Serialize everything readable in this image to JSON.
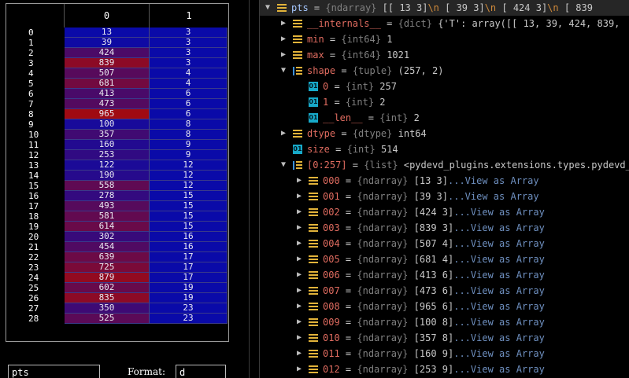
{
  "array_viewer": {
    "column_headers": [
      "0",
      "1"
    ],
    "rows": [
      {
        "index": "0",
        "c0": "13",
        "c1": "3",
        "heat": 0.0
      },
      {
        "index": "1",
        "c0": "39",
        "c1": "3",
        "heat": 0.03
      },
      {
        "index": "2",
        "c0": "424",
        "c1": "3",
        "heat": 0.41
      },
      {
        "index": "3",
        "c0": "839",
        "c1": "3",
        "heat": 0.82
      },
      {
        "index": "4",
        "c0": "507",
        "c1": "4",
        "heat": 0.49
      },
      {
        "index": "5",
        "c0": "681",
        "c1": "4",
        "heat": 0.66
      },
      {
        "index": "6",
        "c0": "413",
        "c1": "6",
        "heat": 0.4
      },
      {
        "index": "7",
        "c0": "473",
        "c1": "6",
        "heat": 0.46
      },
      {
        "index": "8",
        "c0": "965",
        "c1": "6",
        "heat": 0.95
      },
      {
        "index": "9",
        "c0": "100",
        "c1": "8",
        "heat": 0.09
      },
      {
        "index": "10",
        "c0": "357",
        "c1": "8",
        "heat": 0.34
      },
      {
        "index": "11",
        "c0": "160",
        "c1": "9",
        "heat": 0.15
      },
      {
        "index": "12",
        "c0": "253",
        "c1": "9",
        "heat": 0.24
      },
      {
        "index": "13",
        "c0": "122",
        "c1": "12",
        "heat": 0.11
      },
      {
        "index": "14",
        "c0": "190",
        "c1": "12",
        "heat": 0.18
      },
      {
        "index": "15",
        "c0": "558",
        "c1": "12",
        "heat": 0.54
      },
      {
        "index": "16",
        "c0": "278",
        "c1": "15",
        "heat": 0.26
      },
      {
        "index": "17",
        "c0": "493",
        "c1": "15",
        "heat": 0.48
      },
      {
        "index": "18",
        "c0": "581",
        "c1": "15",
        "heat": 0.56
      },
      {
        "index": "19",
        "c0": "614",
        "c1": "15",
        "heat": 0.6
      },
      {
        "index": "20",
        "c0": "302",
        "c1": "16",
        "heat": 0.29
      },
      {
        "index": "21",
        "c0": "454",
        "c1": "16",
        "heat": 0.44
      },
      {
        "index": "22",
        "c0": "639",
        "c1": "17",
        "heat": 0.62
      },
      {
        "index": "23",
        "c0": "725",
        "c1": "17",
        "heat": 0.71
      },
      {
        "index": "24",
        "c0": "879",
        "c1": "17",
        "heat": 0.86
      },
      {
        "index": "25",
        "c0": "602",
        "c1": "19",
        "heat": 0.59
      },
      {
        "index": "26",
        "c0": "835",
        "c1": "19",
        "heat": 0.82
      },
      {
        "index": "27",
        "c0": "350",
        "c1": "23",
        "heat": 0.33
      },
      {
        "index": "28",
        "c0": "525",
        "c1": "23",
        "heat": 0.51
      }
    ],
    "name_field": "pts",
    "format_label": "Format:",
    "format_value": "d"
  },
  "tree": {
    "rows": [
      {
        "id": "pts",
        "depth": 0,
        "arrow": "down",
        "icon": "list-icon",
        "name": "pts",
        "type": "{ndarray}",
        "value_parts": [
          {
            "t": "[[  13    3]",
            "c": "val"
          },
          {
            "t": "\\n",
            "c": "esc"
          },
          {
            "t": " [  39    3]",
            "c": "val"
          },
          {
            "t": "\\n",
            "c": "esc"
          },
          {
            "t": " [ 424    3]",
            "c": "val"
          },
          {
            "t": "\\n",
            "c": "esc"
          },
          {
            "t": " [ 839",
            "c": "val"
          }
        ],
        "selected": true
      },
      {
        "id": "internals",
        "depth": 1,
        "arrow": "right",
        "icon": "list-icon",
        "name": "__internals__",
        "type": "{dict}",
        "value_parts": [
          {
            "t": "{'T': array([[  13,   39,  424,  839,",
            "c": "val"
          }
        ]
      },
      {
        "id": "min",
        "depth": 1,
        "arrow": "right",
        "icon": "list-icon",
        "name": "min",
        "type": "{int64}",
        "value_parts": [
          {
            "t": "1",
            "c": "val"
          }
        ]
      },
      {
        "id": "max",
        "depth": 1,
        "arrow": "right",
        "icon": "list-icon",
        "name": "max",
        "type": "{int64}",
        "value_parts": [
          {
            "t": "1021",
            "c": "val"
          }
        ]
      },
      {
        "id": "shape",
        "depth": 1,
        "arrow": "down",
        "icon": "tuple-icon",
        "name": "shape",
        "type": "{tuple}",
        "value_parts": [
          {
            "t": "(257, 2)",
            "c": "val"
          }
        ]
      },
      {
        "id": "shape0",
        "depth": 2,
        "arrow": "",
        "icon": "int-icon",
        "name": "0",
        "type": "{int}",
        "value_parts": [
          {
            "t": "257",
            "c": "val"
          }
        ]
      },
      {
        "id": "shape1",
        "depth": 2,
        "arrow": "",
        "icon": "int-icon",
        "name": "1",
        "type": "{int}",
        "value_parts": [
          {
            "t": "2",
            "c": "val"
          }
        ]
      },
      {
        "id": "shapelen",
        "depth": 2,
        "arrow": "",
        "icon": "int-icon",
        "name": "__len__",
        "type": "{int}",
        "value_parts": [
          {
            "t": "2",
            "c": "val"
          }
        ]
      },
      {
        "id": "dtype",
        "depth": 1,
        "arrow": "right",
        "icon": "list-icon",
        "name": "dtype",
        "type": "{dtype}",
        "value_parts": [
          {
            "t": "int64",
            "c": "val"
          }
        ]
      },
      {
        "id": "size",
        "depth": 1,
        "arrow": "",
        "icon": "int-icon",
        "name": "size",
        "type": "{int}",
        "value_parts": [
          {
            "t": "514",
            "c": "val"
          }
        ]
      },
      {
        "id": "slice",
        "depth": 1,
        "arrow": "down",
        "icon": "tuple-icon",
        "name": "[0:257]",
        "type": "{list}",
        "value_parts": [
          {
            "t": "<pydevd_plugins.extensions.types.pydevd_plu",
            "c": "val"
          }
        ]
      },
      {
        "id": "i000",
        "depth": 2,
        "arrow": "right",
        "icon": "list-icon",
        "name": "000",
        "type": "{ndarray}",
        "value_parts": [
          {
            "t": "[13  3]",
            "c": "val"
          },
          {
            "t": "...View as Array",
            "c": "link"
          }
        ]
      },
      {
        "id": "i001",
        "depth": 2,
        "arrow": "right",
        "icon": "list-icon",
        "name": "001",
        "type": "{ndarray}",
        "value_parts": [
          {
            "t": "[39  3]",
            "c": "val"
          },
          {
            "t": "...View as Array",
            "c": "link"
          }
        ]
      },
      {
        "id": "i002",
        "depth": 2,
        "arrow": "right",
        "icon": "list-icon",
        "name": "002",
        "type": "{ndarray}",
        "value_parts": [
          {
            "t": "[424    3]",
            "c": "val"
          },
          {
            "t": "...View as Array",
            "c": "link"
          }
        ]
      },
      {
        "id": "i003",
        "depth": 2,
        "arrow": "right",
        "icon": "list-icon",
        "name": "003",
        "type": "{ndarray}",
        "value_parts": [
          {
            "t": "[839    3]",
            "c": "val"
          },
          {
            "t": "...View as Array",
            "c": "link"
          }
        ]
      },
      {
        "id": "i004",
        "depth": 2,
        "arrow": "right",
        "icon": "list-icon",
        "name": "004",
        "type": "{ndarray}",
        "value_parts": [
          {
            "t": "[507    4]",
            "c": "val"
          },
          {
            "t": "...View as Array",
            "c": "link"
          }
        ]
      },
      {
        "id": "i005",
        "depth": 2,
        "arrow": "right",
        "icon": "list-icon",
        "name": "005",
        "type": "{ndarray}",
        "value_parts": [
          {
            "t": "[681    4]",
            "c": "val"
          },
          {
            "t": "...View as Array",
            "c": "link"
          }
        ]
      },
      {
        "id": "i006",
        "depth": 2,
        "arrow": "right",
        "icon": "list-icon",
        "name": "006",
        "type": "{ndarray}",
        "value_parts": [
          {
            "t": "[413    6]",
            "c": "val"
          },
          {
            "t": "...View as Array",
            "c": "link"
          }
        ]
      },
      {
        "id": "i007",
        "depth": 2,
        "arrow": "right",
        "icon": "list-icon",
        "name": "007",
        "type": "{ndarray}",
        "value_parts": [
          {
            "t": "[473    6]",
            "c": "val"
          },
          {
            "t": "...View as Array",
            "c": "link"
          }
        ]
      },
      {
        "id": "i008",
        "depth": 2,
        "arrow": "right",
        "icon": "list-icon",
        "name": "008",
        "type": "{ndarray}",
        "value_parts": [
          {
            "t": "[965    6]",
            "c": "val"
          },
          {
            "t": "...View as Array",
            "c": "link"
          }
        ]
      },
      {
        "id": "i009",
        "depth": 2,
        "arrow": "right",
        "icon": "list-icon",
        "name": "009",
        "type": "{ndarray}",
        "value_parts": [
          {
            "t": "[100    8]",
            "c": "val"
          },
          {
            "t": "...View as Array",
            "c": "link"
          }
        ]
      },
      {
        "id": "i010",
        "depth": 2,
        "arrow": "right",
        "icon": "list-icon",
        "name": "010",
        "type": "{ndarray}",
        "value_parts": [
          {
            "t": "[357    8]",
            "c": "val"
          },
          {
            "t": "...View as Array",
            "c": "link"
          }
        ]
      },
      {
        "id": "i011",
        "depth": 2,
        "arrow": "right",
        "icon": "list-icon",
        "name": "011",
        "type": "{ndarray}",
        "value_parts": [
          {
            "t": "[160    9]",
            "c": "val"
          },
          {
            "t": "...View as Array",
            "c": "link"
          }
        ]
      },
      {
        "id": "i012",
        "depth": 2,
        "arrow": "right",
        "icon": "list-icon",
        "name": "012",
        "type": "{ndarray}",
        "value_parts": [
          {
            "t": "[253    9]",
            "c": "val"
          },
          {
            "t": "...View as Array",
            "c": "link"
          }
        ]
      }
    ]
  },
  "colors": {
    "cell_low": "#0a0aa8",
    "cell_high": "#a80a0a",
    "key_color": "#e06c60",
    "type_color": "#808080",
    "link_color": "#6e8fbf",
    "selected_key_color": "#a6c8ff"
  }
}
